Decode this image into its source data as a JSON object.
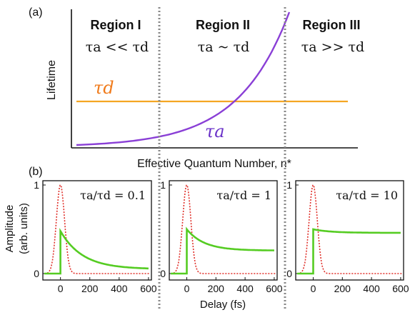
{
  "chart_data": [
    {
      "panel": "(a)",
      "type": "line",
      "xlabel": "Effective Quantum Number, n*",
      "ylabel": "Lifetime",
      "x_ticks": "none",
      "y_ticks": "none",
      "regions": [
        {
          "name": "Region I",
          "condition": "τa << τd"
        },
        {
          "name": "Region II",
          "condition": "τa ~ τd"
        },
        {
          "name": "Region III",
          "condition": "τa >> τd"
        }
      ],
      "series": [
        {
          "name": "τd",
          "color": "#f5a623",
          "shape": "constant"
        },
        {
          "name": "τa",
          "color": "#8a3fd6",
          "shape": "increasing, crosses τd in Region II"
        }
      ]
    },
    {
      "panel": "(b)",
      "type": "line",
      "subplots": [
        {
          "ratio_label": "τa/τd = 0.1",
          "ratio": 0.1,
          "peak": 0.48,
          "plateau": 0.05,
          "tau": 150
        },
        {
          "ratio_label": "τa/τd = 1",
          "ratio": 1,
          "peak": 0.5,
          "plateau": 0.26,
          "tau": 120
        },
        {
          "ratio_label": "τa/τd = 10",
          "ratio": 10,
          "peak": 0.5,
          "plateau": 0.46,
          "tau": 120
        }
      ],
      "xlabel": "Delay (fs)",
      "ylabel": "Amplitude (arb. units)",
      "ylabel_line1": "Amplitude",
      "ylabel_line2": "(arb. units)",
      "x_ticks": [
        "0",
        "200",
        "400",
        "600"
      ],
      "y_ticks": [
        "0",
        "1"
      ],
      "xlim": [
        -120,
        620
      ],
      "ylim": [
        0,
        1
      ],
      "series": [
        {
          "name": "pulse",
          "color": "#e0302a",
          "style": "dotted",
          "center": 0,
          "sigma": 28
        },
        {
          "name": "signal",
          "color": "#55cc22",
          "style": "solid"
        }
      ]
    }
  ],
  "labels": {
    "panel_a": "(a)",
    "panel_b": "(b)",
    "tau_d_label": "τd",
    "tau_a_label": "τa"
  },
  "colors": {
    "tau_a": "#8a3fd6",
    "tau_d": "#f5a623",
    "pulse": "#e0302a",
    "signal": "#55cc22",
    "divider": "#888888"
  }
}
